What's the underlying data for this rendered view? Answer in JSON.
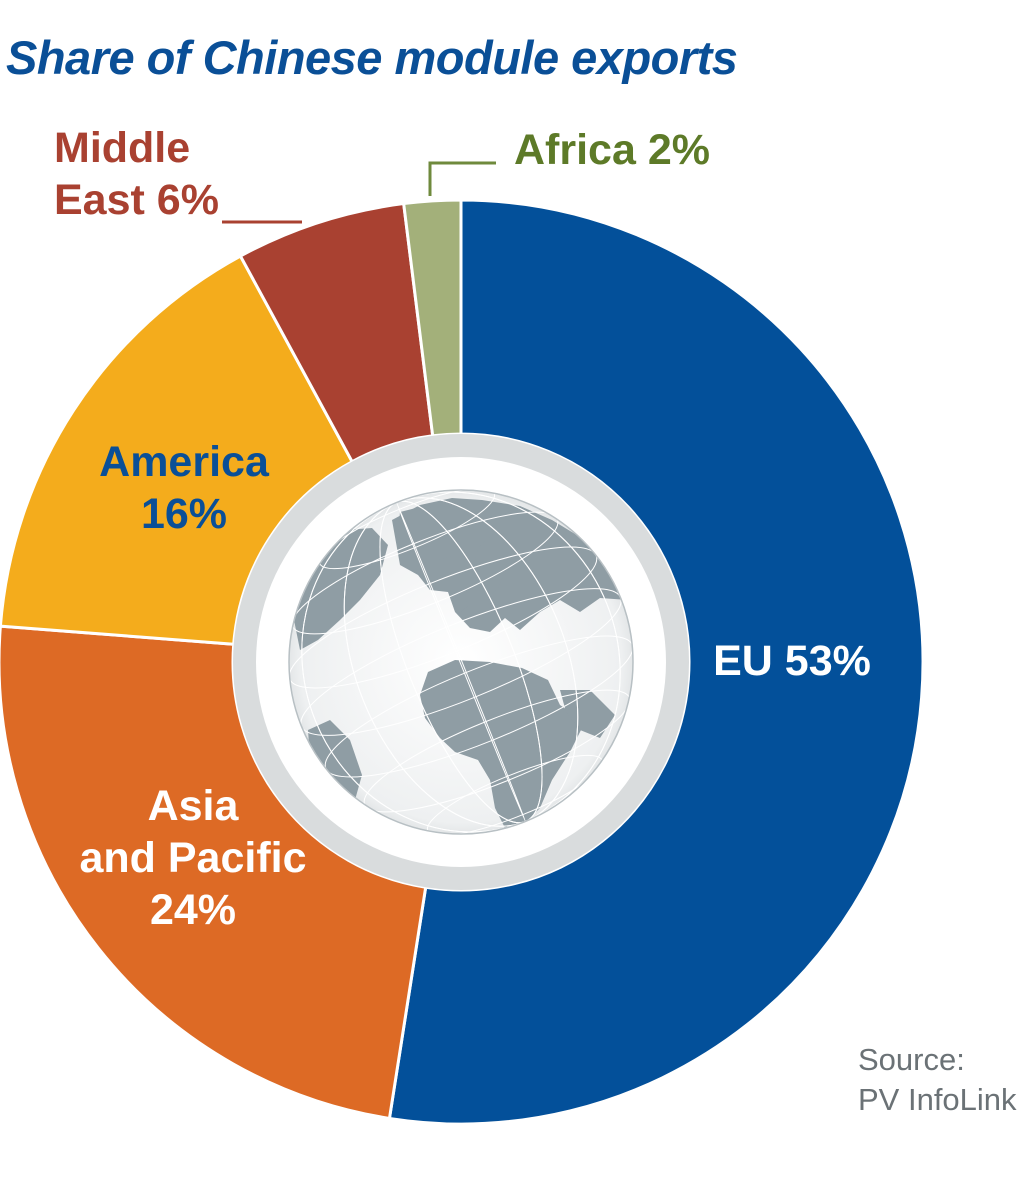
{
  "title": "Share of Chinese module exports",
  "source": {
    "line1": "Source:",
    "line2": "PV InfoLink"
  },
  "colors": {
    "title": "#0a4f97",
    "eu": "#03509a",
    "asia_pacific": "#dd6a25",
    "america": "#f4ac1c",
    "middle_east": "#a94131",
    "africa": "#a3b07a",
    "globe_land": "#8f9da4",
    "globe_ring": "#d9dcdd"
  },
  "chart_data": {
    "type": "pie",
    "style": "donut",
    "title": "Share of Chinese module exports",
    "unit": "%",
    "slices": [
      {
        "label": "EU",
        "value": 53,
        "color": "#03509a",
        "label_color": "#ffffff"
      },
      {
        "label": "Asia and Pacific",
        "value": 24,
        "color": "#dd6a25",
        "label_color": "#ffffff"
      },
      {
        "label": "America",
        "value": 16,
        "color": "#f4ac1c",
        "label_color": "#0a4f97"
      },
      {
        "label": "Middle East",
        "value": 6,
        "color": "#a94131",
        "label_color": "#a94131"
      },
      {
        "label": "Africa",
        "value": 2,
        "color": "#a3b07a",
        "label_color": "#5d7a28"
      }
    ],
    "labels": {
      "eu": [
        "EU 53%"
      ],
      "asia_pacific": [
        "Asia",
        "and Pacific",
        "24%"
      ],
      "america": [
        "America",
        "16%"
      ],
      "middle_east": [
        "Middle",
        "East 6%"
      ],
      "africa": [
        "Africa 2%"
      ]
    },
    "center_image": "globe-icon"
  }
}
